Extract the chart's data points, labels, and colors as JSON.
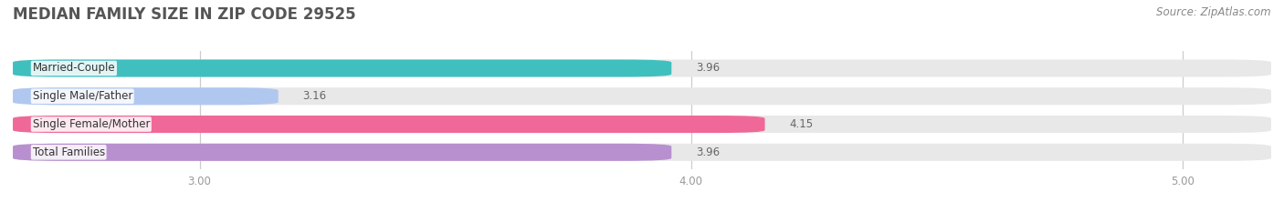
{
  "title": "MEDIAN FAMILY SIZE IN ZIP CODE 29525",
  "source": "Source: ZipAtlas.com",
  "categories": [
    "Married-Couple",
    "Single Male/Father",
    "Single Female/Mother",
    "Total Families"
  ],
  "values": [
    3.96,
    3.16,
    4.15,
    3.96
  ],
  "colors": [
    "#40bfbf",
    "#b0c8f0",
    "#f06898",
    "#b890d0"
  ],
  "xlim_min": 2.62,
  "xlim_max": 5.18,
  "xticks": [
    3.0,
    4.0,
    5.0
  ],
  "xtick_labels": [
    "3.00",
    "4.00",
    "5.00"
  ],
  "bar_height": 0.62,
  "background_color": "#ffffff",
  "bar_bg_color": "#e8e8e8",
  "title_fontsize": 12,
  "label_fontsize": 8.5,
  "value_fontsize": 8.5,
  "source_fontsize": 8.5,
  "title_color": "#555555",
  "source_color": "#888888",
  "value_color": "#666666",
  "label_color": "#333333",
  "grid_color": "#cccccc",
  "tick_color": "#999999"
}
